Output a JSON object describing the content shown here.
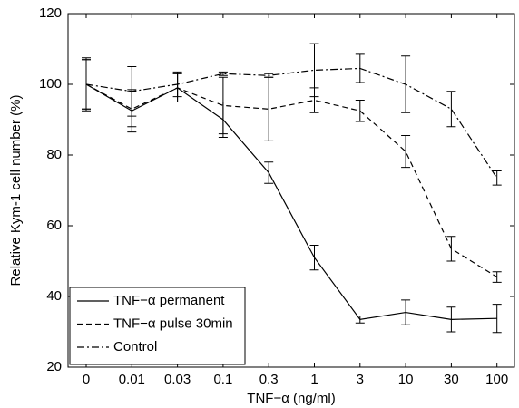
{
  "chart_data": {
    "type": "line",
    "x_label": "TNF−α (ng/ml)",
    "y_label": "Relative Kym-1 cell number (%)",
    "categories": [
      "0",
      "0.01",
      "0.03",
      "0.1",
      "0.3",
      "1",
      "3",
      "10",
      "30",
      "100"
    ],
    "series": [
      {
        "name": "TNF−α permanent",
        "color": "#000000",
        "line_style": "solid",
        "values": [
          100,
          92.5,
          99,
          90,
          75,
          51,
          33.5,
          35.5,
          33.5,
          33.8
        ],
        "errors": [
          7.5,
          6,
          4,
          5,
          3,
          3.5,
          1,
          3.5,
          3.5,
          4
        ]
      },
      {
        "name": "TNF−α pulse 30min",
        "color": "#000000",
        "line_style": "dashed",
        "values": [
          100,
          93,
          99,
          94,
          93,
          95.5,
          92.5,
          81,
          53.5,
          45.5
        ],
        "errors": [
          7,
          5,
          4,
          8,
          9,
          3.5,
          3,
          4.5,
          3.5,
          1.5
        ]
      },
      {
        "name": "Control",
        "color": "#000000",
        "line_style": "dashdot",
        "values": [
          100,
          98,
          100,
          103,
          102.5,
          104,
          104.5,
          100,
          93,
          73.5
        ],
        "errors": [
          7,
          7,
          3.5,
          0.5,
          0.5,
          7.5,
          4,
          8,
          5,
          2
        ]
      }
    ],
    "ylim": [
      20,
      120
    ],
    "yticks": [
      20,
      40,
      60,
      80,
      100,
      120
    ],
    "grid": false,
    "legend": "lower left"
  }
}
